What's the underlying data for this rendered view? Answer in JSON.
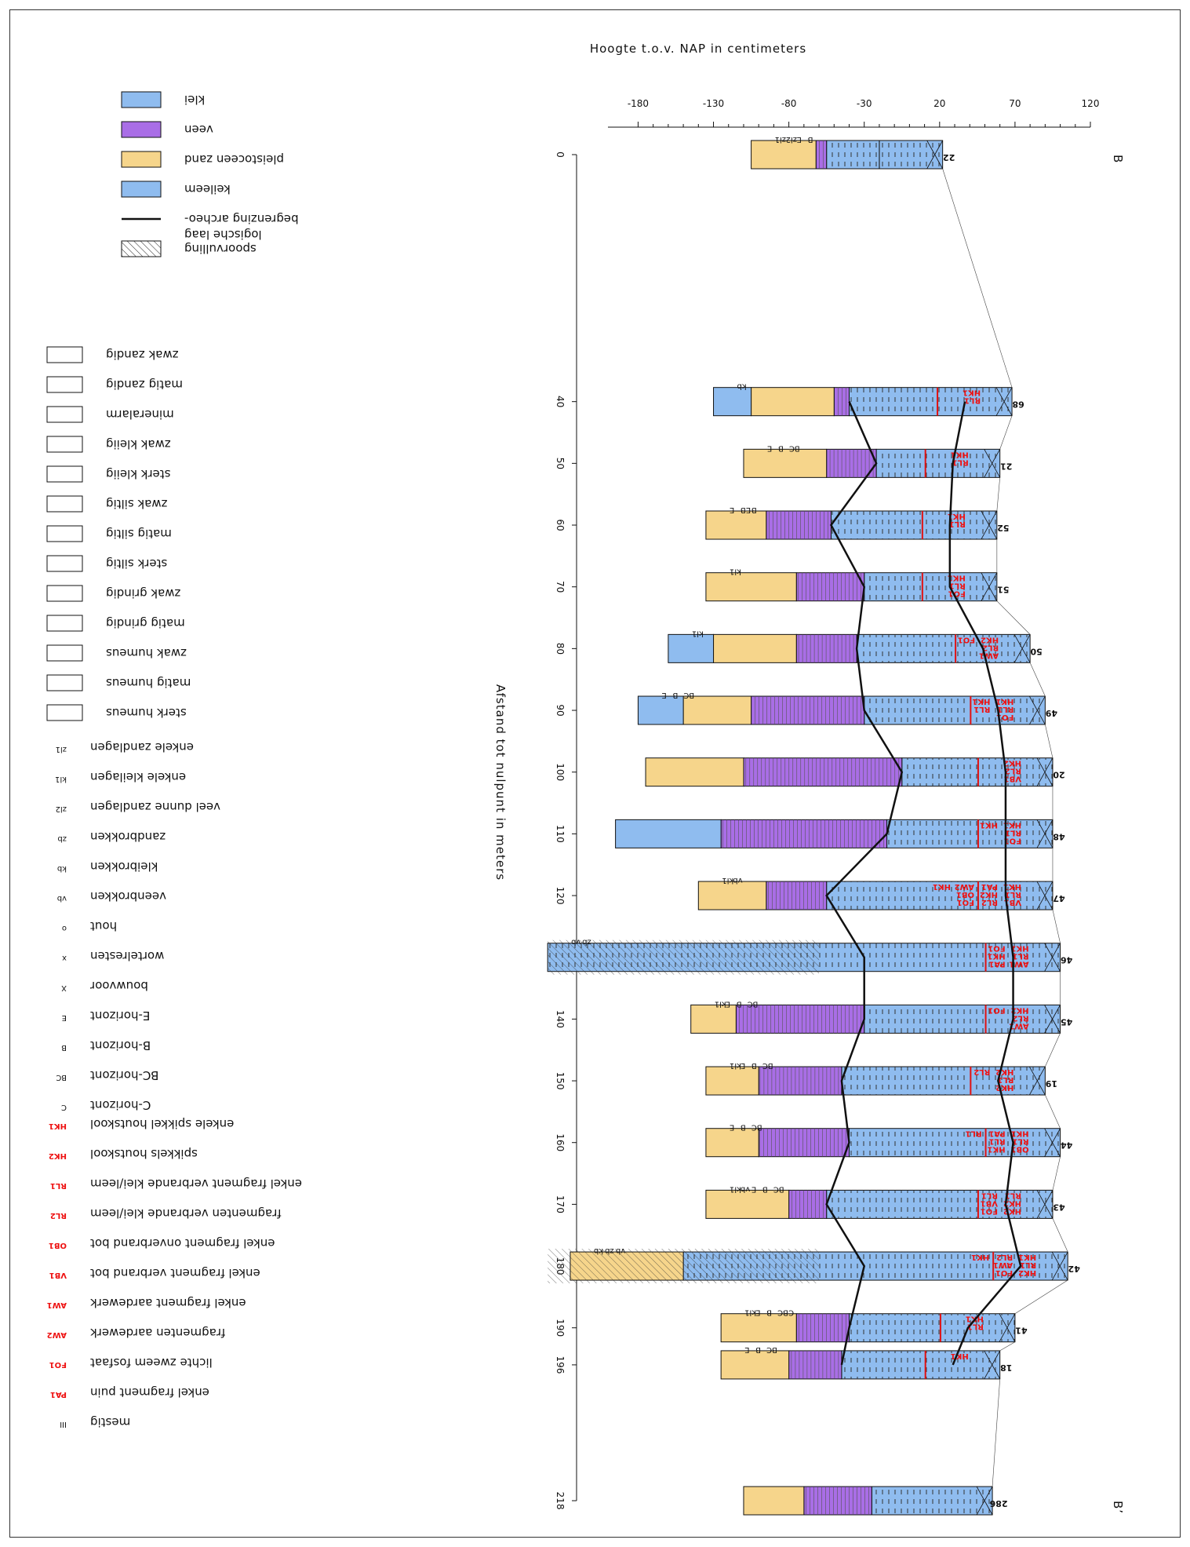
{
  "titles": {
    "y_axis": "Hoogte t.o.v. NAP in centimeters",
    "x_axis": "Afstand tot nulpunt in meters",
    "section_start": "B",
    "section_end": "B’"
  },
  "colors": {
    "klei": "#8fbcef",
    "veen": "#a96ee6",
    "zand": "#f6d58b",
    "keileem": "#8fbcef",
    "red": "#e11111",
    "green": "#2bd21d"
  },
  "chart_data": {
    "type": "borehole-profile",
    "y_ticks": [
      120,
      70,
      20,
      -30,
      -80,
      -130,
      -180
    ],
    "ylim": [
      -200,
      120
    ],
    "x_ticks": [
      0,
      40,
      50,
      60,
      70,
      80,
      90,
      100,
      110,
      120,
      130,
      140,
      150,
      160,
      170,
      180,
      190,
      196,
      218
    ],
    "xlim": [
      0,
      218
    ],
    "boreholes": [
      {
        "id": "22",
        "x": 0,
        "top": 22,
        "layers": [
          {
            "m": "klei",
            "from": 22,
            "to": -20
          },
          {
            "m": "klei",
            "from": -20,
            "to": -55
          },
          {
            "m": "veen",
            "from": -55,
            "to": -62
          },
          {
            "m": "zand",
            "from": -62,
            "to": -105
          }
        ],
        "tags": [
          "zl1",
          "zl2",
          "E",
          "B"
        ],
        "finds": []
      },
      {
        "id": "68",
        "x": 40,
        "top": 68,
        "layers": [
          {
            "m": "klei",
            "from": 68,
            "to": -40
          },
          {
            "m": "veen",
            "from": -40,
            "to": -50
          },
          {
            "m": "zand",
            "from": -50,
            "to": -105
          },
          {
            "m": "keileem",
            "from": -105,
            "to": -130
          }
        ],
        "tags": [
          "kb"
        ],
        "finds": [
          "HK1",
          "RL1"
        ]
      },
      {
        "id": "21",
        "x": 50,
        "top": 60,
        "layers": [
          {
            "m": "klei",
            "from": 60,
            "to": -22
          },
          {
            "m": "veen",
            "from": -22,
            "to": -55
          },
          {
            "m": "zand",
            "from": -55,
            "to": -110
          }
        ],
        "tags": [
          "E",
          "B",
          "BC"
        ],
        "finds": [
          "HK1",
          "RL1"
        ]
      },
      {
        "id": "52",
        "x": 60,
        "top": 58,
        "layers": [
          {
            "m": "klei",
            "from": 58,
            "to": -52
          },
          {
            "m": "veen",
            "from": -52,
            "to": -95
          },
          {
            "m": "zand",
            "from": -95,
            "to": -135
          }
        ],
        "tags": [
          "E",
          "EB",
          "B"
        ],
        "finds": [
          "HK1",
          "RL1"
        ]
      },
      {
        "id": "51",
        "x": 70,
        "top": 58,
        "layers": [
          {
            "m": "klei",
            "from": 58,
            "to": -30
          },
          {
            "m": "veen",
            "from": -30,
            "to": -75
          },
          {
            "m": "zand",
            "from": -75,
            "to": -135
          }
        ],
        "tags": [
          "kl1"
        ],
        "finds": [
          "HK1",
          "RL1",
          "FO1"
        ]
      },
      {
        "id": "50",
        "x": 80,
        "top": 80,
        "layers": [
          {
            "m": "klei",
            "from": 80,
            "to": -35
          },
          {
            "m": "veen",
            "from": -35,
            "to": -75
          },
          {
            "m": "zand",
            "from": -75,
            "to": -130
          },
          {
            "m": "keileem",
            "from": -130,
            "to": -160
          }
        ],
        "tags": [
          "kl1"
        ],
        "finds": [
          "HK2",
          "RL2",
          "AW1",
          "FO1"
        ]
      },
      {
        "id": "49",
        "x": 90,
        "top": 90,
        "layers": [
          {
            "m": "klei",
            "from": 90,
            "to": -30
          },
          {
            "m": "veen",
            "from": -30,
            "to": -105
          },
          {
            "m": "zand",
            "from": -105,
            "to": -150
          },
          {
            "m": "keileem",
            "from": -150,
            "to": -180
          }
        ],
        "tags": [
          "E",
          "B",
          "BC"
        ],
        "finds": [
          "HK1",
          "RL1",
          "FO1",
          "HK1",
          "RL1"
        ]
      },
      {
        "id": "20",
        "x": 100,
        "top": 95,
        "layers": [
          {
            "m": "klei",
            "from": 95,
            "to": -5
          },
          {
            "m": "veen",
            "from": -5,
            "to": -110
          },
          {
            "m": "zand",
            "from": -110,
            "to": -175
          }
        ],
        "tags": [],
        "finds": [
          "HK2",
          "RL2",
          "VB1"
        ]
      },
      {
        "id": "48",
        "x": 110,
        "top": 95,
        "layers": [
          {
            "m": "klei",
            "from": 95,
            "to": -15
          },
          {
            "m": "veen",
            "from": -15,
            "to": -125
          },
          {
            "m": "keileem",
            "from": -125,
            "to": -195
          }
        ],
        "tags": [],
        "finds": [
          "HK1",
          "RL1",
          "FO1",
          "HK1"
        ]
      },
      {
        "id": "47",
        "x": 120,
        "top": 95,
        "layers": [
          {
            "m": "klei",
            "from": 95,
            "to": -55
          },
          {
            "m": "veen",
            "from": -55,
            "to": -95
          },
          {
            "m": "zand",
            "from": -95,
            "to": -140
          }
        ],
        "tags": [
          "kl1",
          "vb"
        ],
        "finds": [
          "HK1",
          "RL1",
          "VB1",
          "PA1",
          "HK2",
          "RL2",
          "AW2",
          "OB1",
          "FO1",
          "HK1"
        ]
      },
      {
        "id": "46",
        "x": 130,
        "top": 100,
        "layers": [
          {
            "m": "klei",
            "from": 100,
            "to": -240
          }
        ],
        "tags": [
          "vb",
          "zb"
        ],
        "finds": [
          "HK1",
          "RL1",
          "AW1",
          "FO1",
          "HK1",
          "PA1"
        ]
      },
      {
        "id": "45",
        "x": 140,
        "top": 100,
        "layers": [
          {
            "m": "klei",
            "from": 100,
            "to": -30
          },
          {
            "m": "veen",
            "from": -30,
            "to": -115
          },
          {
            "m": "zand",
            "from": -115,
            "to": -145
          }
        ],
        "tags": [
          "kl1",
          "E",
          "B",
          "BC"
        ],
        "finds": [
          "HK2",
          "RL2",
          "AW1",
          "FO1"
        ]
      },
      {
        "id": "19",
        "x": 150,
        "top": 90,
        "layers": [
          {
            "m": "klei",
            "from": 90,
            "to": -45
          },
          {
            "m": "veen",
            "from": -45,
            "to": -100
          },
          {
            "m": "zand",
            "from": -100,
            "to": -135
          }
        ],
        "tags": [
          "kl1",
          "E",
          "B",
          "BC"
        ],
        "finds": [
          "HK2",
          "RL1",
          "HK2",
          "RL2"
        ]
      },
      {
        "id": "44",
        "x": 160,
        "top": 100,
        "layers": [
          {
            "m": "klei",
            "from": 100,
            "to": -40
          },
          {
            "m": "veen",
            "from": -40,
            "to": -100
          },
          {
            "m": "zand",
            "from": -100,
            "to": -135
          }
        ],
        "tags": [
          "E",
          "B",
          "BC"
        ],
        "finds": [
          "HK1",
          "RL1",
          "OB1",
          "PA1",
          "RL1",
          "HK1",
          "RL1"
        ]
      },
      {
        "id": "43",
        "x": 170,
        "top": 95,
        "layers": [
          {
            "m": "klei",
            "from": 95,
            "to": -55
          },
          {
            "m": "veen",
            "from": -55,
            "to": -80
          },
          {
            "m": "zand",
            "from": -80,
            "to": -135
          }
        ],
        "tags": [
          "kl1",
          "vb",
          "E",
          "B",
          "BC"
        ],
        "finds": [
          "RL1",
          "HK2",
          "HK2",
          "RL1",
          "VB1",
          "FO1"
        ]
      },
      {
        "id": "42",
        "x": 180,
        "top": 105,
        "layers": [
          {
            "m": "klei",
            "from": 105,
            "to": -150
          },
          {
            "m": "zand",
            "from": -150,
            "to": -225
          }
        ],
        "tags": [
          "kb",
          "zb",
          "vb"
        ],
        "finds": [
          "HK1",
          "RL1",
          "HK2",
          "RL2",
          "AW1",
          "FO1",
          "HK1"
        ]
      },
      {
        "id": "41",
        "x": 190,
        "top": 70,
        "layers": [
          {
            "m": "klei",
            "from": 70,
            "to": -40
          },
          {
            "m": "veen",
            "from": -40,
            "to": -75
          },
          {
            "m": "zand",
            "from": -75,
            "to": -125
          }
        ],
        "tags": [
          "kl1",
          "E",
          "B",
          "BC",
          "C"
        ],
        "finds": [
          "HK1",
          "RL1"
        ]
      },
      {
        "id": "18",
        "x": 196,
        "top": 60,
        "layers": [
          {
            "m": "klei",
            "from": 60,
            "to": -45
          },
          {
            "m": "veen",
            "from": -45,
            "to": -80
          },
          {
            "m": "zand",
            "from": -80,
            "to": -125
          }
        ],
        "tags": [
          "E",
          "B",
          "BC"
        ],
        "finds": [
          "HK1"
        ]
      },
      {
        "id": "286",
        "x": 218,
        "top": 55,
        "layers": [
          {
            "m": "klei",
            "from": 55,
            "to": -25
          },
          {
            "m": "veen",
            "from": -25,
            "to": -70
          },
          {
            "m": "zand",
            "from": -70,
            "to": -110
          }
        ],
        "tags": [],
        "finds": []
      }
    ]
  },
  "legend_materials": [
    {
      "key": "klei",
      "label": "klei"
    },
    {
      "key": "veen",
      "label": "veen"
    },
    {
      "key": "zand",
      "label": "pleistoceen zand"
    },
    {
      "key": "keileem",
      "label": "keileem"
    },
    {
      "key": "line",
      "label": "begrenzing archeo-",
      "label2": "logische laag"
    },
    {
      "key": "hatch",
      "label": "spoorvulling"
    }
  ],
  "legend_textures": [
    "zwak zandig",
    "matig zandig",
    "mineralarm",
    "zwak kleiig",
    "sterk kleiig",
    "zwak siltig",
    "matig siltig",
    "sterk siltig",
    "zwak grindig",
    "matig grindig",
    "zwak humeus",
    "matig humeus",
    "sterk humeus"
  ],
  "legend_tags": [
    {
      "code": "zl1",
      "label": "enkele zandlagen"
    },
    {
      "code": "kl1",
      "label": "enkele kleilagen"
    },
    {
      "code": "zl2",
      "label": "veel dunne zandlagen"
    },
    {
      "code": "zb",
      "label": "zandbrokken"
    },
    {
      "code": "kb",
      "label": "kleibrokken"
    },
    {
      "code": "vb",
      "label": "veenbrokken"
    },
    {
      "code": "o",
      "label": "hout"
    },
    {
      "code": "x",
      "label": "wortelresten"
    },
    {
      "code": "X",
      "label": "bouwvoor"
    },
    {
      "code": "E",
      "label": "E-horizont"
    },
    {
      "code": "B",
      "label": "B-horizont"
    },
    {
      "code": "BC",
      "label": "BC-horizont"
    },
    {
      "code": "C",
      "label": "C-horizont"
    }
  ],
  "legend_finds": [
    {
      "code": "HK1",
      "label": "enkele spikkel houtskool"
    },
    {
      "code": "HK2",
      "label": "spikkels houtskool"
    },
    {
      "code": "RL1",
      "label": "enkel fragment verbrande klei/leem"
    },
    {
      "code": "RL2",
      "label": "fragmenten verbrande klei/leem"
    },
    {
      "code": "OB1",
      "label": "enkel fragment onverbrand bot"
    },
    {
      "code": "VB1",
      "label": "enkel fragment verbrand bot"
    },
    {
      "code": "AW1",
      "label": "enkel fragment aardewerk"
    },
    {
      "code": "AW2",
      "label": "fragmenten aardewerk"
    },
    {
      "code": "FO1",
      "label": "lichte zweem fosfaat"
    },
    {
      "code": "PA1",
      "label": "enkel fragment puin"
    },
    {
      "code": "III",
      "label": "mestig"
    }
  ]
}
